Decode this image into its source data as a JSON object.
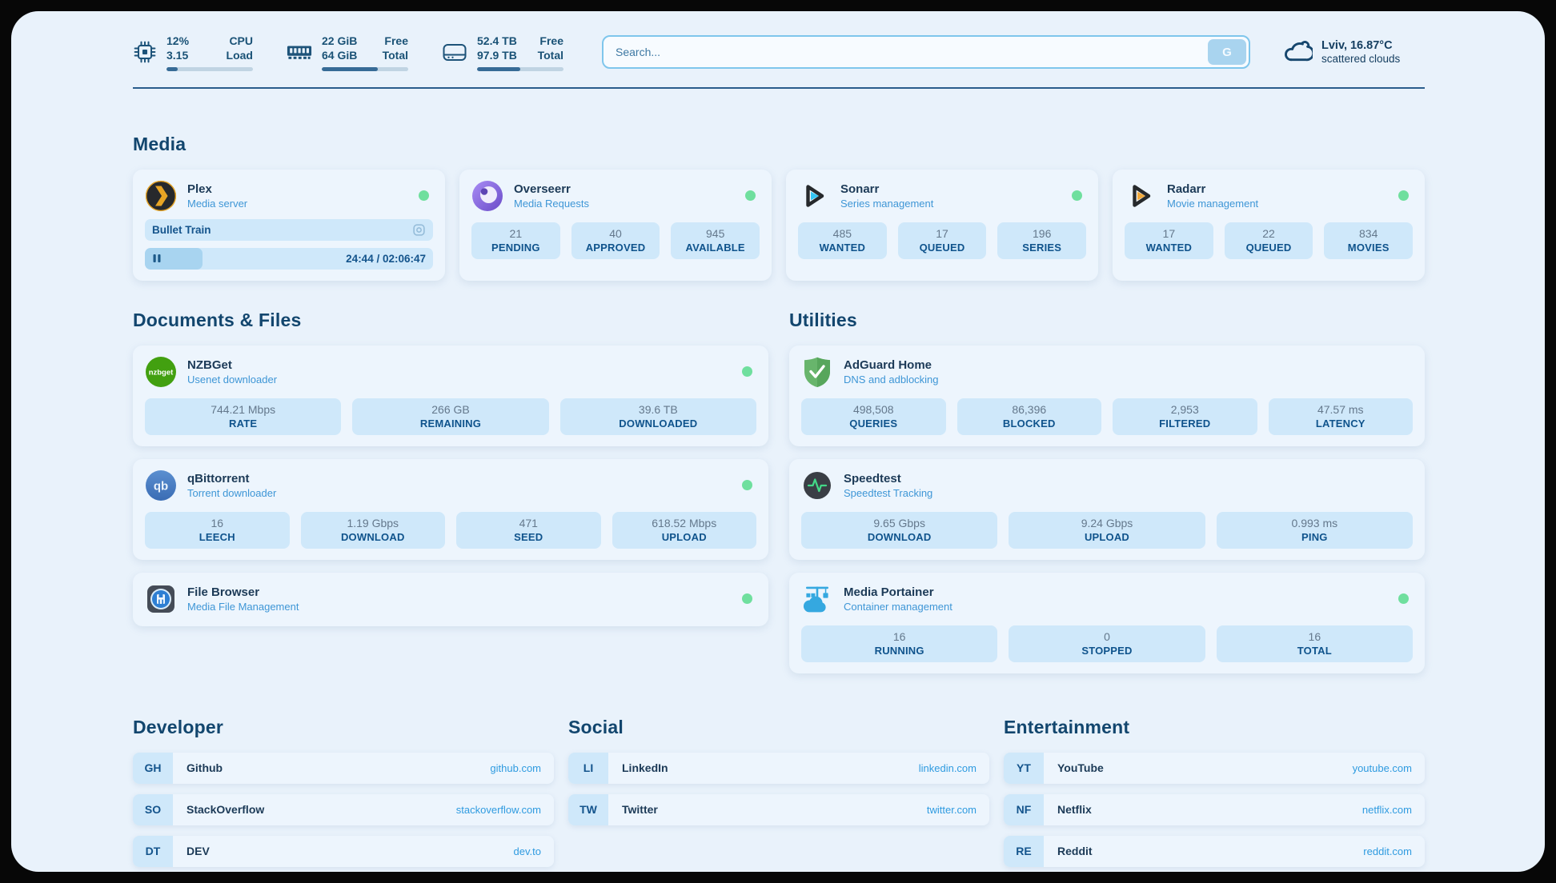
{
  "colors": {
    "page_bg": "#e9f2fb",
    "card_bg": "#edf5fd",
    "tile_bg": "#cfe8fa",
    "navy_text": "#12466e",
    "desc_blue": "#3e96d6",
    "link_blue": "#2f9be0",
    "label_blue": "#0f538c",
    "status_green": "#6fdf9e",
    "bar_fill": "#376b96",
    "divider": "#2a5d8c"
  },
  "icons": {
    "header": [
      "cpu-chip-icon",
      "memory-icon",
      "hard-drive-icon",
      "search-engine-g-button",
      "cloud-icon"
    ],
    "apps": [
      "plex-icon",
      "overseerr-icon",
      "sonarr-icon",
      "radarr-icon",
      "nzbget-icon",
      "qbittorrent-icon",
      "filebrowser-icon",
      "adguard-icon",
      "speedtest-icon",
      "portainer-icon"
    ],
    "player": [
      "cast-icon",
      "pause-icon"
    ],
    "status": "status-dot-green"
  },
  "header": {
    "system": {
      "cpu": {
        "value_line1": "12%",
        "value_line2": "3.15",
        "label_line1": "CPU",
        "label_line2": "Load",
        "progress_pct": 13
      },
      "memory": {
        "value_line1": "22 GiB",
        "value_line2": "64 GiB",
        "label_line1": "Free",
        "label_line2": "Total",
        "progress_pct": 65
      },
      "disk": {
        "value_line1": "52.4 TB",
        "value_line2": "97.9 TB",
        "label_line1": "Free",
        "label_line2": "Total",
        "progress_pct": 50
      }
    },
    "search": {
      "placeholder": "Search...",
      "engine_button": "G"
    },
    "weather": {
      "location": "Lviv, 16.87°C",
      "condition": "scattered clouds"
    }
  },
  "media": {
    "title": "Media",
    "plex": {
      "name": "Plex",
      "desc": "Media server",
      "status": "online",
      "now_playing": "Bullet Train",
      "time_display": "24:44 / 02:06:47",
      "progress_pct": 20
    },
    "overseerr": {
      "name": "Overseerr",
      "desc": "Media Requests",
      "status": "online",
      "stats": [
        {
          "value": "21",
          "label": "PENDING"
        },
        {
          "value": "40",
          "label": "APPROVED"
        },
        {
          "value": "945",
          "label": "AVAILABLE"
        }
      ]
    },
    "sonarr": {
      "name": "Sonarr",
      "desc": "Series management",
      "status": "online",
      "stats": [
        {
          "value": "485",
          "label": "WANTED"
        },
        {
          "value": "17",
          "label": "QUEUED"
        },
        {
          "value": "196",
          "label": "SERIES"
        }
      ]
    },
    "radarr": {
      "name": "Radarr",
      "desc": "Movie management",
      "status": "online",
      "stats": [
        {
          "value": "17",
          "label": "WANTED"
        },
        {
          "value": "22",
          "label": "QUEUED"
        },
        {
          "value": "834",
          "label": "MOVIES"
        }
      ]
    }
  },
  "documents": {
    "title": "Documents & Files",
    "nzbget": {
      "name": "NZBGet",
      "desc": "Usenet downloader",
      "status": "online",
      "stats": [
        {
          "value": "744.21 Mbps",
          "label": "RATE"
        },
        {
          "value": "266 GB",
          "label": "REMAINING"
        },
        {
          "value": "39.6 TB",
          "label": "DOWNLOADED"
        }
      ]
    },
    "qbittorrent": {
      "name": "qBittorrent",
      "desc": "Torrent downloader",
      "status": "online",
      "stats": [
        {
          "value": "16",
          "label": "LEECH"
        },
        {
          "value": "1.19 Gbps",
          "label": "DOWNLOAD"
        },
        {
          "value": "471",
          "label": "SEED"
        },
        {
          "value": "618.52 Mbps",
          "label": "UPLOAD"
        }
      ]
    },
    "filebrowser": {
      "name": "File Browser",
      "desc": "Media File Management",
      "status": "online"
    }
  },
  "utilities": {
    "title": "Utilities",
    "adguard": {
      "name": "AdGuard Home",
      "desc": "DNS and adblocking",
      "stats": [
        {
          "value": "498,508",
          "label": "QUERIES"
        },
        {
          "value": "86,396",
          "label": "BLOCKED"
        },
        {
          "value": "2,953",
          "label": "FILTERED"
        },
        {
          "value": "47.57 ms",
          "label": "LATENCY"
        }
      ]
    },
    "speedtest": {
      "name": "Speedtest",
      "desc": "Speedtest Tracking",
      "stats": [
        {
          "value": "9.65 Gbps",
          "label": "DOWNLOAD"
        },
        {
          "value": "9.24 Gbps",
          "label": "UPLOAD"
        },
        {
          "value": "0.993 ms",
          "label": "PING"
        }
      ]
    },
    "portainer": {
      "name": "Media Portainer",
      "desc": "Container management",
      "status": "online",
      "stats": [
        {
          "value": "16",
          "label": "RUNNING"
        },
        {
          "value": "0",
          "label": "STOPPED"
        },
        {
          "value": "16",
          "label": "TOTAL"
        }
      ]
    }
  },
  "links": {
    "developer": {
      "title": "Developer",
      "items": [
        {
          "abbr": "GH",
          "name": "Github",
          "url": "github.com"
        },
        {
          "abbr": "SO",
          "name": "StackOverflow",
          "url": "stackoverflow.com"
        },
        {
          "abbr": "DT",
          "name": "DEV",
          "url": "dev.to"
        }
      ]
    },
    "social": {
      "title": "Social",
      "items": [
        {
          "abbr": "LI",
          "name": "LinkedIn",
          "url": "linkedin.com"
        },
        {
          "abbr": "TW",
          "name": "Twitter",
          "url": "twitter.com"
        }
      ]
    },
    "entertainment": {
      "title": "Entertainment",
      "items": [
        {
          "abbr": "YT",
          "name": "YouTube",
          "url": "youtube.com"
        },
        {
          "abbr": "NF",
          "name": "Netflix",
          "url": "netflix.com"
        },
        {
          "abbr": "RE",
          "name": "Reddit",
          "url": "reddit.com"
        }
      ]
    }
  }
}
